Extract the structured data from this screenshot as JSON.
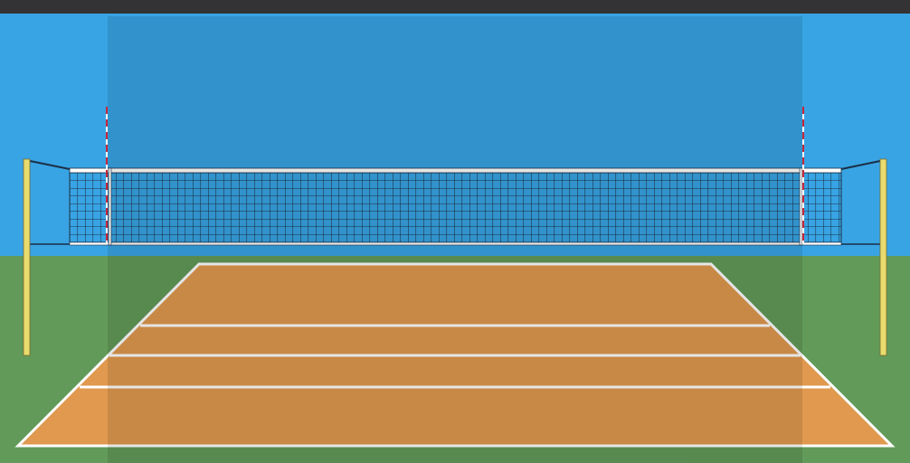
{
  "colors": {
    "top_bar": "#333234",
    "sky": "#38a4e4",
    "grass": "#629a5a",
    "court": "#e0994f",
    "court_lines": "#ffffff",
    "pole": "#e9dc6e",
    "net_mesh": "#1b2f45",
    "antenna_red": "#c8263a",
    "overlay": "rgba(0,0,0,0.1)"
  }
}
